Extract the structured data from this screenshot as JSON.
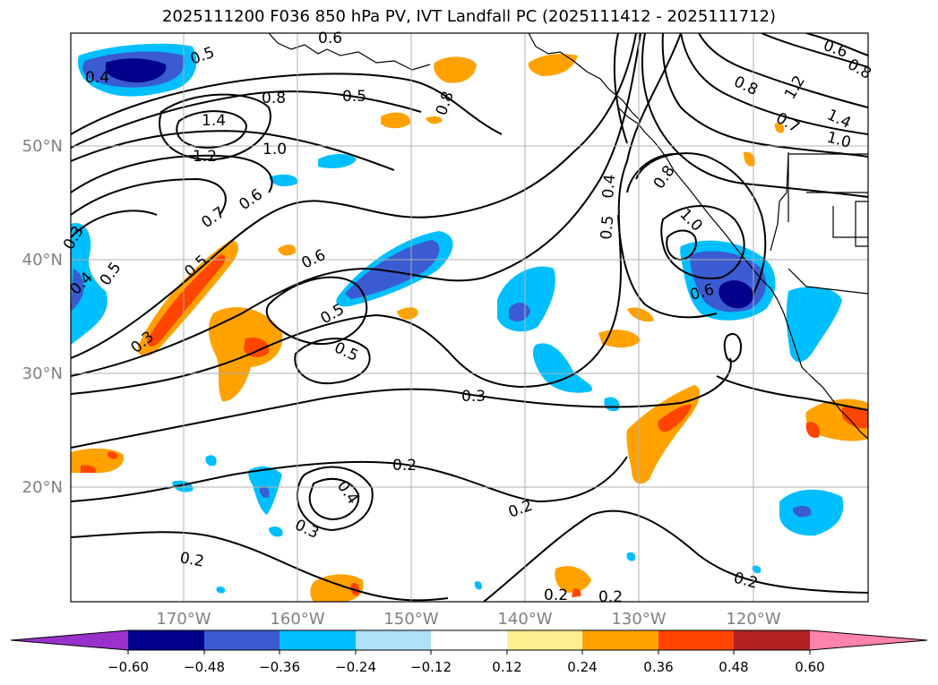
{
  "title": "2025111200 F036 850 hPa PV, IVT Landfall PC (2025111412 - 2025111712)",
  "map": {
    "lat_labels": [
      "50°N",
      "40°N",
      "30°N",
      "20°N"
    ],
    "lon_labels": [
      "170°W",
      "160°W",
      "150°W",
      "140°W",
      "130°W",
      "120°W"
    ],
    "contour_labels": [
      "0.4",
      "0.5",
      "0.6",
      "0.8",
      "1.4",
      "1.2",
      "1.0",
      "0.5",
      "0.8",
      "0.6",
      "0.7",
      "0.5",
      "0.3",
      "0.4",
      "0.5",
      "0.3",
      "0.6",
      "0.5",
      "0.5",
      "0.3",
      "0.2",
      "0.4",
      "0.3",
      "0.2",
      "0.2",
      "0.2",
      "0.2",
      "0.2",
      "0.5",
      "0.4",
      "0.8",
      "1.0",
      "0.6",
      "0.8",
      "0.7",
      "1.2",
      "1.4",
      "1.0",
      "0.6",
      "0.8"
    ],
    "land_color": "#000000",
    "grid_color": "#b0b0b0",
    "label_color": "#808080"
  },
  "colorbar": {
    "colors": [
      "#9932cc",
      "#00008b",
      "#3a5bd2",
      "#00bfff",
      "#afe1fa",
      "#ffffff",
      "#ffee90",
      "#ffa200",
      "#ff4500",
      "#b22222",
      "#ff83aa"
    ],
    "tick_labels": [
      "−0.60",
      "−0.48",
      "−0.36",
      "−0.24",
      "−0.12",
      "0.12",
      "0.24",
      "0.36",
      "0.48",
      "0.60"
    ]
  }
}
